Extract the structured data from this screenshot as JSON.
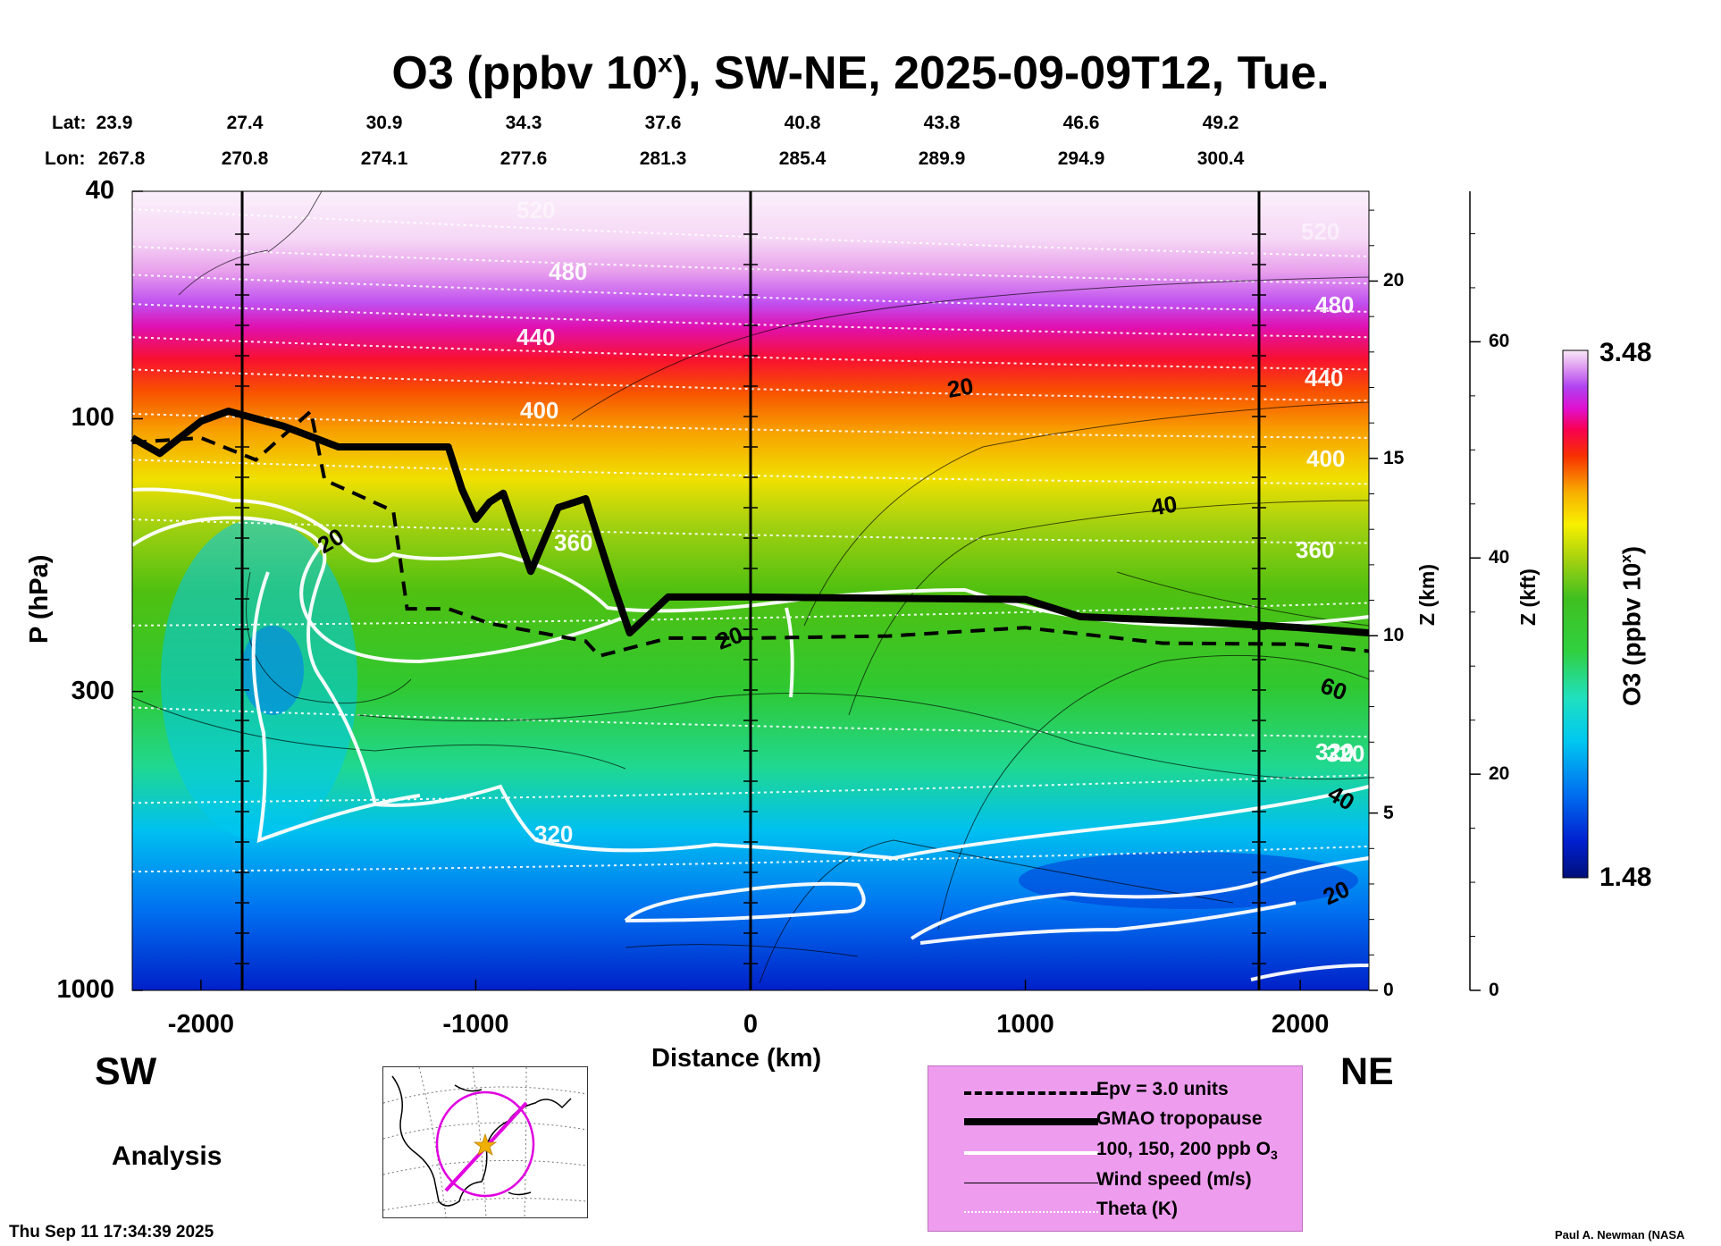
{
  "title": {
    "main": "O3 (ppbv 10",
    "sup": "x",
    "rest": "), SW-NE, 2025-09-09T12, Tue."
  },
  "coords": {
    "lat_label": "Lat:",
    "lon_label": "Lon:",
    "lat": [
      "23.9",
      "27.4",
      "30.9",
      "34.3",
      "37.6",
      "40.8",
      "43.8",
      "46.6",
      "49.2"
    ],
    "lon": [
      "267.8",
      "270.8",
      "274.1",
      "277.6",
      "281.3",
      "285.4",
      "289.9",
      "294.9",
      "300.4"
    ]
  },
  "chart_data": {
    "type": "heatmap",
    "title": "O3 (ppbv 10^x), SW-NE, 2025-09-09T12, Tue.",
    "xlabel": "Distance (km)",
    "ylabel": "P (hPa)",
    "xlim": [
      -2250,
      2250
    ],
    "ylim": [
      1000,
      40
    ],
    "yscale": "log",
    "x_ticks": [
      "-2000",
      "-1000",
      "0",
      "1000",
      "2000"
    ],
    "y_ticks": [
      "40",
      "100",
      "300",
      "1000"
    ],
    "z_km_label": "Z (km)",
    "z_km_ticks": [
      "0",
      "5",
      "10",
      "15",
      "20"
    ],
    "z_kft_label": "Z (kft)",
    "z_kft_ticks": [
      "0",
      "20",
      "40",
      "60"
    ],
    "colorbar": {
      "label": "O3 (ppbv 10",
      "label_sup": "x",
      "label_end": ")",
      "min": "1.48",
      "max": "3.48"
    },
    "theta_labels": [
      "520",
      "480",
      "440",
      "400",
      "360",
      "320",
      "520",
      "480",
      "440",
      "400",
      "360",
      "320",
      "320"
    ],
    "wind_labels": [
      "20",
      "20",
      "20",
      "40",
      "60",
      "40",
      "20"
    ],
    "tropopause_hpa": [
      {
        "x": -2250,
        "p": 108
      },
      {
        "x": -2150,
        "p": 115
      },
      {
        "x": -2000,
        "p": 101
      },
      {
        "x": -1900,
        "p": 97
      },
      {
        "x": -1700,
        "p": 103
      },
      {
        "x": -1500,
        "p": 112
      },
      {
        "x": -1100,
        "p": 112
      },
      {
        "x": -1050,
        "p": 133
      },
      {
        "x": -1000,
        "p": 150
      },
      {
        "x": -950,
        "p": 140
      },
      {
        "x": -900,
        "p": 135
      },
      {
        "x": -800,
        "p": 185
      },
      {
        "x": -700,
        "p": 143
      },
      {
        "x": -600,
        "p": 138
      },
      {
        "x": -500,
        "p": 195
      },
      {
        "x": -440,
        "p": 237
      },
      {
        "x": -300,
        "p": 205
      },
      {
        "x": 0,
        "p": 205
      },
      {
        "x": 1000,
        "p": 207
      },
      {
        "x": 1200,
        "p": 222
      },
      {
        "x": 1600,
        "p": 226
      },
      {
        "x": 2000,
        "p": 232
      },
      {
        "x": 2250,
        "p": 237
      }
    ],
    "epv3_hpa": [
      {
        "x": -2250,
        "p": 110
      },
      {
        "x": -2000,
        "p": 108
      },
      {
        "x": -1800,
        "p": 118
      },
      {
        "x": -1600,
        "p": 97
      },
      {
        "x": -1550,
        "p": 128
      },
      {
        "x": -1300,
        "p": 145
      },
      {
        "x": -1250,
        "p": 215
      },
      {
        "x": -1100,
        "p": 215
      },
      {
        "x": -950,
        "p": 228
      },
      {
        "x": -600,
        "p": 245
      },
      {
        "x": -550,
        "p": 260
      },
      {
        "x": -300,
        "p": 242
      },
      {
        "x": 0,
        "p": 242
      },
      {
        "x": 500,
        "p": 240
      },
      {
        "x": 1000,
        "p": 232
      },
      {
        "x": 1500,
        "p": 247
      },
      {
        "x": 2000,
        "p": 248
      },
      {
        "x": 2250,
        "p": 255
      }
    ]
  },
  "direction": {
    "left": "SW",
    "right": "NE"
  },
  "analysis_label": "Analysis",
  "legend": {
    "epv": "Epv = 3.0 units",
    "tropopause": "GMAO tropopause",
    "o3_prefix": "100, 150, 200 ppb O",
    "o3_sub": "3",
    "wind": "Wind speed (m/s)",
    "theta": "Theta (K)"
  },
  "footer": {
    "timestamp": "Thu Sep 11 17:34:39 2025",
    "credit": "Paul A. Newman (NASA"
  }
}
